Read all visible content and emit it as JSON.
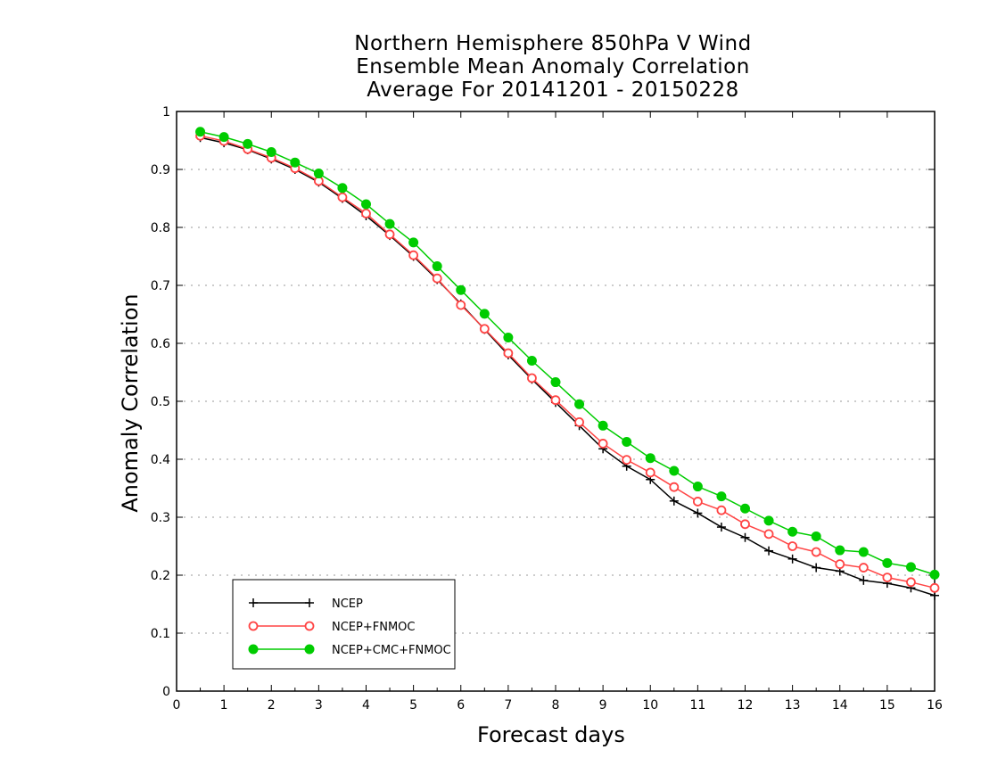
{
  "chart_data": {
    "type": "line",
    "title_lines": [
      "Northern Hemisphere 850hPa V Wind",
      "Ensemble Mean Anomaly Correlation",
      "Average For 20141201 - 20150228"
    ],
    "xlabel": "Forecast days",
    "ylabel": "Anomaly Correlation",
    "xlim": [
      0,
      16
    ],
    "ylim": [
      0,
      1
    ],
    "x_ticks": [
      "0",
      "1",
      "2",
      "3",
      "4",
      "5",
      "6",
      "7",
      "8",
      "9",
      "10",
      "11",
      "12",
      "13",
      "14",
      "15",
      "16"
    ],
    "y_ticks": [
      "0",
      "0.1",
      "0.2",
      "0.3",
      "0.4",
      "0.5",
      "0.6",
      "0.7",
      "0.8",
      "0.9",
      "1"
    ],
    "grid": "dotted horizontal",
    "legend_position": "bottom-left",
    "x": [
      0.5,
      1,
      1.5,
      2,
      2.5,
      3,
      3.5,
      4,
      4.5,
      5,
      5.5,
      6,
      6.5,
      7,
      7.5,
      8,
      8.5,
      9,
      9.5,
      10,
      10.5,
      11,
      11.5,
      12,
      12.5,
      13,
      13.5,
      14,
      14.5,
      15,
      15.5,
      16
    ],
    "series": [
      {
        "name": "NCEP",
        "color": "#000000",
        "marker": "plus",
        "values": [
          0.955,
          0.946,
          0.934,
          0.918,
          0.9,
          0.878,
          0.85,
          0.82,
          0.786,
          0.75,
          0.71,
          0.668,
          0.624,
          0.58,
          0.538,
          0.498,
          0.458,
          0.418,
          0.388,
          0.365,
          0.328,
          0.307,
          0.283,
          0.265,
          0.242,
          0.228,
          0.213,
          0.207,
          0.191,
          0.186,
          0.178,
          0.165
        ]
      },
      {
        "name": "NCEP+FNMOC",
        "color": "#ff4444",
        "marker": "open-circle",
        "values": [
          0.958,
          0.949,
          0.935,
          0.92,
          0.902,
          0.88,
          0.852,
          0.824,
          0.788,
          0.752,
          0.712,
          0.666,
          0.625,
          0.583,
          0.54,
          0.502,
          0.464,
          0.427,
          0.399,
          0.377,
          0.352,
          0.327,
          0.312,
          0.288,
          0.271,
          0.25,
          0.24,
          0.219,
          0.213,
          0.196,
          0.188,
          0.178
        ]
      },
      {
        "name": "NCEP+CMC+FNMOC",
        "color": "#00cc00",
        "marker": "filled-circle",
        "values": [
          0.965,
          0.956,
          0.944,
          0.93,
          0.912,
          0.893,
          0.868,
          0.84,
          0.806,
          0.774,
          0.733,
          0.692,
          0.651,
          0.61,
          0.57,
          0.533,
          0.495,
          0.458,
          0.43,
          0.402,
          0.38,
          0.353,
          0.336,
          0.315,
          0.294,
          0.275,
          0.267,
          0.243,
          0.24,
          0.221,
          0.214,
          0.201
        ]
      }
    ]
  }
}
